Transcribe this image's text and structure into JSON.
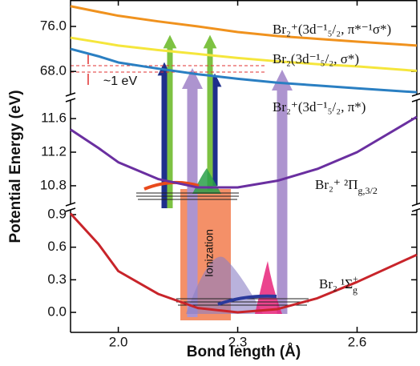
{
  "chart_data": [
    {
      "type": "line",
      "y_label": "Potential Energy (eV)",
      "x": [
        1.88,
        1.95,
        2.0,
        2.1,
        2.2,
        2.3,
        2.4,
        2.5,
        2.6,
        2.75
      ],
      "series": [
        {
          "name": "Br₂⁺(3d⁻¹₅/₂, π*⁻¹σ*)",
          "color": "#f0921e",
          "values": [
            79.6,
            78.6,
            77.9,
            76.9,
            76.0,
            75.0,
            74.3,
            73.8,
            73.3,
            72.6
          ]
        },
        {
          "name": "Br₂(3d⁻¹₅/₂, σ*)",
          "color": "#f5e63c",
          "values": [
            74.0,
            73.2,
            72.6,
            71.8,
            71.1,
            70.4,
            69.8,
            69.3,
            68.9,
            68.1
          ]
        },
        {
          "name": "Br₂⁺(3d⁻¹₅/₂, π*)",
          "color": "#2a7fc2",
          "values": [
            72.0,
            70.7,
            69.6,
            68.5,
            67.5,
            66.7,
            66.0,
            65.5,
            65.0,
            64.3
          ]
        }
      ],
      "annotations": [
        "~1 eV"
      ],
      "ylim": [
        63.9,
        80.7
      ],
      "yticks": [
        {
          "value": 68,
          "label": "68.0"
        },
        {
          "value": 76,
          "label": "76.0"
        }
      ]
    },
    {
      "type": "line",
      "x": [
        1.88,
        1.95,
        2.0,
        2.1,
        2.2,
        2.3,
        2.4,
        2.5,
        2.6,
        2.75
      ],
      "series": [
        {
          "name": "Br₂⁺ ²Π",
          "name_sub": "g,3/2",
          "color": "#6a2fa0",
          "values": [
            11.47,
            11.25,
            11.08,
            10.88,
            10.78,
            10.78,
            10.86,
            11.0,
            11.2,
            11.62
          ]
        }
      ],
      "ylim": [
        10.58,
        11.82
      ],
      "yticks": [
        10.8,
        11.2,
        11.6
      ]
    },
    {
      "type": "line",
      "x_label": "Bond length (Å)",
      "x": [
        1.88,
        1.95,
        2.0,
        2.1,
        2.2,
        2.3,
        2.4,
        2.5,
        2.6,
        2.75
      ],
      "series": [
        {
          "name": "Br₂ ¹Σ",
          "name_sub": "g",
          "name_sup": "+",
          "color": "#c8242a",
          "values": [
            0.91,
            0.63,
            0.38,
            0.17,
            0.04,
            0.0,
            0.03,
            0.13,
            0.28,
            0.53
          ]
        }
      ],
      "annotations": [
        "Ionization"
      ],
      "ylim": [
        -0.184,
        0.944
      ],
      "yticks": [
        {
          "value": 0,
          "label": "0.0"
        },
        0.3,
        0.6,
        0.9
      ],
      "xlim": [
        1.88,
        2.75
      ],
      "xticks": [
        {
          "value": 2.0,
          "label": "2.0"
        },
        2.3,
        2.6
      ]
    }
  ]
}
